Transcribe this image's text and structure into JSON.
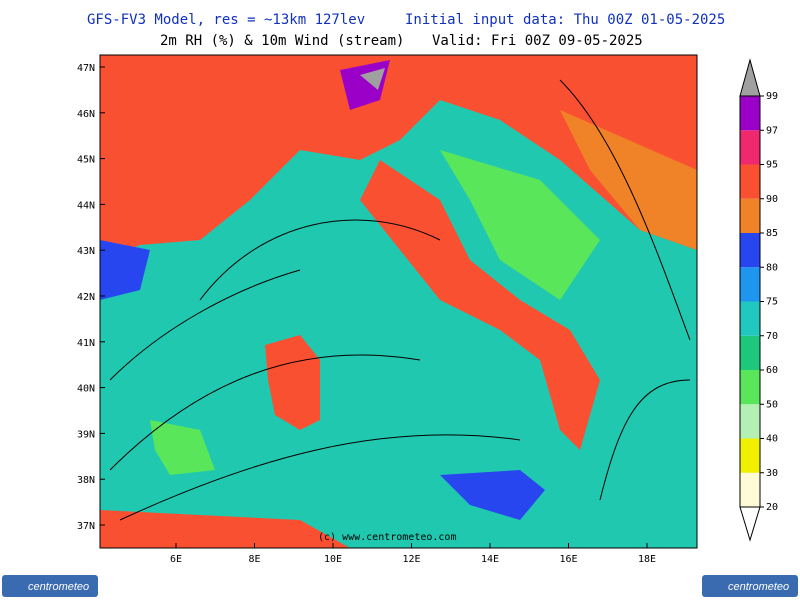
{
  "header": {
    "line1_left": "GFS-FV3 Model, res = ~13km 127lev",
    "line1_right": "Initial input data: Thu 00Z 01-05-2025",
    "line2_left": "2m RH (%) & 10m Wind (stream)",
    "line2_right": "Valid: Fri 00Z 09-05-2025"
  },
  "map": {
    "lat_labels": [
      "47N",
      "46N",
      "45N",
      "44N",
      "43N",
      "42N",
      "41N",
      "40N",
      "39N",
      "38N",
      "37N"
    ],
    "lon_labels": [
      "6E",
      "8E",
      "10E",
      "12E",
      "14E",
      "16E",
      "18E"
    ],
    "copyright": "(c) www.centrometeo.com"
  },
  "colorbar": {
    "levels": [
      {
        "value": 20,
        "color": "#fffbd6"
      },
      {
        "value": 30,
        "color": "#f0f000"
      },
      {
        "value": 40,
        "color": "#b4f0b4"
      },
      {
        "value": 50,
        "color": "#5ae65a"
      },
      {
        "value": 60,
        "color": "#1ec87a"
      },
      {
        "value": 70,
        "color": "#20c8c0"
      },
      {
        "value": 75,
        "color": "#1e96f0"
      },
      {
        "value": 80,
        "color": "#2846f0"
      },
      {
        "value": 85,
        "color": "#f08228"
      },
      {
        "value": 90,
        "color": "#fa5032"
      },
      {
        "value": 95,
        "color": "#f0286e"
      },
      {
        "value": 97,
        "color": "#9b00c8"
      },
      {
        "value": 99,
        "color": "#a0a0a0"
      }
    ]
  },
  "footer": {
    "logo_left": "centrometeo",
    "logo_right": "centrometeo"
  }
}
